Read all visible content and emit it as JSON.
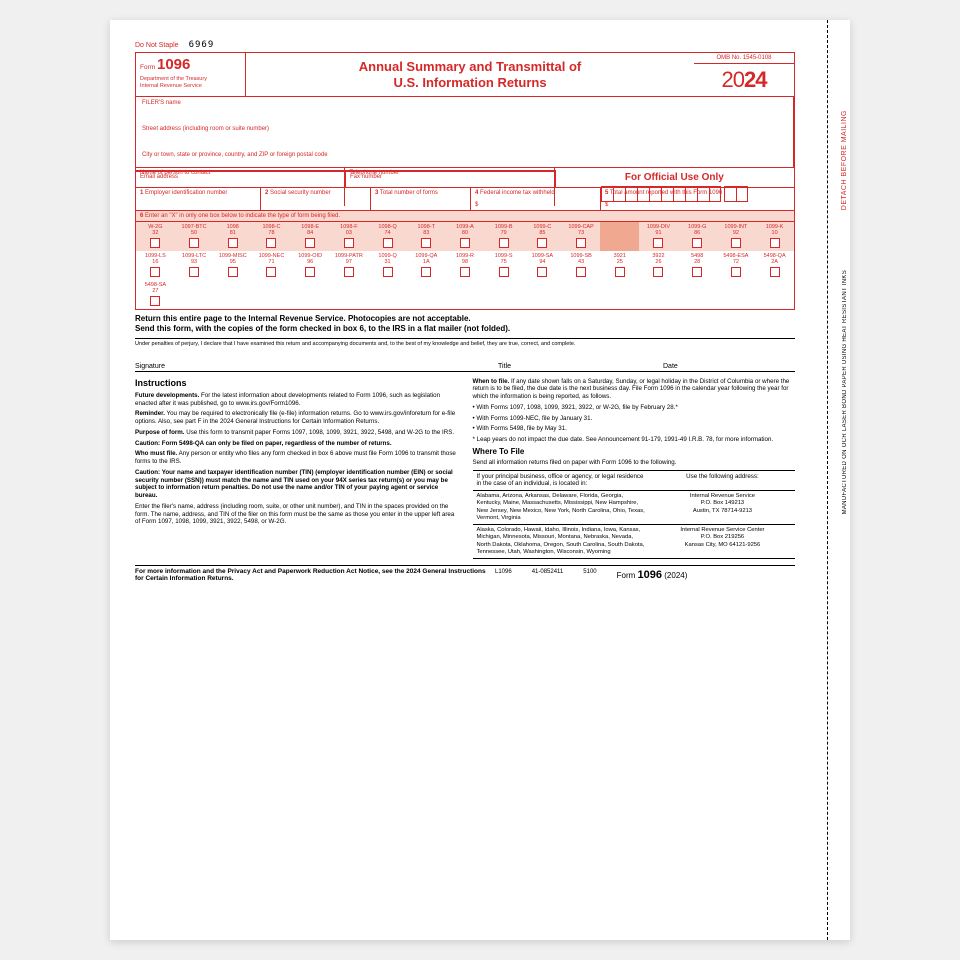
{
  "meta": {
    "doNotStaple": "Do Not Staple",
    "code": "6969",
    "formWord": "Form",
    "formNumber": "1096",
    "dept": "Department of the Treasury\nInternal Revenue Service",
    "title1": "Annual Summary and Transmittal of",
    "title2": "U.S. Information Returns",
    "omb": "OMB No. 1545-0108",
    "yearPrefix": "20",
    "yearSuffix": "24",
    "sideText1": "DETACH BEFORE MAILING",
    "sideText2": "MANUFACTURED ON OCR LASER BOND PAPER USING HEAT RESISTANT INKS"
  },
  "filer": {
    "nameLabel": "FILER'S name",
    "streetLabel": "Street address (including room or suite number)",
    "cityLabel": "City or town, state or province, country, and ZIP or foreign postal code",
    "contactLabel": "Name of person to contact",
    "phoneLabel": "Telephone number",
    "emailLabel": "Email address",
    "faxLabel": "Fax number",
    "officialUse": "For Official Use Only"
  },
  "boxes": {
    "b1": "Employer identification number",
    "b2": "Social security number",
    "b3": "Total number of forms",
    "b4": "Federal income tax withheld",
    "b5": "Total amount reported with this Form 1096",
    "b6": "Enter an \"X\" in only one box below to indicate the type of form being filed."
  },
  "checkboxes": {
    "row1": [
      {
        "t": "W-2G",
        "n": "32"
      },
      {
        "t": "1097-BTC",
        "n": "50"
      },
      {
        "t": "1098",
        "n": "81"
      },
      {
        "t": "1098-C",
        "n": "78"
      },
      {
        "t": "1098-E",
        "n": "84"
      },
      {
        "t": "1098-F",
        "n": "03"
      },
      {
        "t": "1098-Q",
        "n": "74"
      },
      {
        "t": "1098-T",
        "n": "83"
      },
      {
        "t": "1099-A",
        "n": "80"
      },
      {
        "t": "1099-B",
        "n": "79"
      },
      {
        "t": "1099-C",
        "n": "85"
      },
      {
        "t": "1099-CAP",
        "n": "73"
      },
      {
        "t": "",
        "n": "",
        "spacer": true
      },
      {
        "t": "1099-DIV",
        "n": "91"
      },
      {
        "t": "1099-G",
        "n": "86"
      },
      {
        "t": "1099-INT",
        "n": "92"
      },
      {
        "t": "1099-K",
        "n": "10"
      }
    ],
    "row2": [
      {
        "t": "1099-LS",
        "n": "16"
      },
      {
        "t": "1099-LTC",
        "n": "93"
      },
      {
        "t": "1099-MISC",
        "n": "95"
      },
      {
        "t": "1099-NEC",
        "n": "71"
      },
      {
        "t": "1099-OID",
        "n": "96"
      },
      {
        "t": "1099-PATR",
        "n": "97"
      },
      {
        "t": "1099-Q",
        "n": "31"
      },
      {
        "t": "1099-QA",
        "n": "1A"
      },
      {
        "t": "1099-R",
        "n": "98"
      },
      {
        "t": "1099-S",
        "n": "75"
      },
      {
        "t": "1099-SA",
        "n": "94"
      },
      {
        "t": "1099-SB",
        "n": "43"
      },
      {
        "t": "3921",
        "n": "25"
      },
      {
        "t": "3922",
        "n": "26"
      },
      {
        "t": "5498",
        "n": "28"
      },
      {
        "t": "5498-ESA",
        "n": "72"
      },
      {
        "t": "5498-QA",
        "n": "2A"
      }
    ],
    "row3": [
      {
        "t": "5498-SA",
        "n": "27"
      }
    ]
  },
  "returnInstr": "Return this entire page to the Internal Revenue Service. Photocopies are not acceptable.\nSend this form, with the copies of the form checked in box 6, to the IRS in a flat mailer (not folded).",
  "perjury": "Under penalties of perjury, I declare that I have examined this return and accompanying documents and, to the best of my knowledge and belief, they are true, correct, and complete.",
  "sig": {
    "signature": "Signature",
    "title": "Title",
    "date": "Date"
  },
  "instructions": {
    "heading": "Instructions",
    "left": [
      {
        "b": "Future developments.",
        "t": " For the latest information about developments related to Form 1096, such as legislation enacted after it was published, go to www.irs.gov/Form1096."
      },
      {
        "b": "Reminder.",
        "t": " You may be required to electronically file (e-file) information returns. Go to www.irs.gov/inforeturn for e-file options. Also, see part F in the 2024 General Instructions for Certain Information Returns."
      },
      {
        "b": "Purpose of form.",
        "t": " Use this form to transmit paper Forms 1097, 1098, 1099, 3921, 3922, 5498, and W-2G to the IRS."
      },
      {
        "b": "Caution: Form 5498-QA can only be filed on paper, regardless of the number of returns.",
        "t": ""
      },
      {
        "b": "Who must file.",
        "t": " Any person or entity who files any form checked in box 6 above must file Form 1096 to transmit those forms to the IRS."
      },
      {
        "b": "Caution: Your name and taxpayer identification number (TIN) (employer identification number (EIN) or social security number (SSN)) must match the name and TIN used on your 94X series tax return(s) or you may be subject to information return penalties. Do not use the name and/or TIN of your paying agent or service bureau.",
        "t": ""
      },
      {
        "b": "",
        "t": "Enter the filer's name, address (including room, suite, or other unit number), and TIN in the spaces provided on the form. The name, address, and TIN of the filer on this form must be the same as those you enter in the upper left area of Form 1097, 1098, 1099, 3921, 3922, 5498, or W-2G."
      }
    ],
    "rightTop": {
      "b": "When to file.",
      "t": " If any date shown falls on a Saturday, Sunday, or legal holiday in the District of Columbia or where the return is to be filed, the due date is the next business day. File Form 1096 in the calendar year following the year for which the information is being reported, as follows."
    },
    "bullets": [
      "With Forms 1097, 1098, 1099, 3921, 3922, or W-2G, file by February 28.*",
      "With Forms 1099-NEC, file by January 31.",
      "With Forms 5498, file by May 31."
    ],
    "leapNote": "* Leap years do not impact the due date. See Announcement 91-179, 1991-49 I.R.B. 78, for more information.",
    "whereHeading": "Where To File",
    "whereText": "Send all information returns filed on paper with Form 1096 to the following.",
    "tableHead1": "If your principal business, office or agency, or legal residence in the case of an individual, is located in:",
    "tableHead2": "Use the following address:",
    "tableRows": [
      {
        "states": "Alabama, Arizona, Arkansas, Delaware, Florida, Georgia, Kentucky, Maine, Massachusetts, Mississippi, New Hampshire, New Jersey, New Mexico, New York, North Carolina, Ohio, Texas, Vermont, Virginia",
        "addr": "Internal Revenue Service\nP.O. Box 149213\nAustin, TX 78714-9213"
      },
      {
        "states": "Alaska, Colorado, Hawaii, Idaho, Illinois, Indiana, Iowa, Kansas, Michigan, Minnesota, Missouri, Montana, Nebraska, Nevada, North Dakota, Oklahoma, Oregon, South Carolina, South Dakota, Tennessee, Utah, Washington, Wisconsin, Wyoming",
        "addr": "Internal Revenue Service Center\nP.O. Box 219256\nKansas City, MO 64121-9256"
      }
    ]
  },
  "footer": {
    "notice": "For more information and the Privacy Act and Paperwork Reduction Act Notice, see the 2024 General Instructions for Certain Information Returns.",
    "l": "L1096",
    "code1": "41-0852411",
    "code2": "5100",
    "form": "Form",
    "num": "1096",
    "yr": "(2024)"
  }
}
